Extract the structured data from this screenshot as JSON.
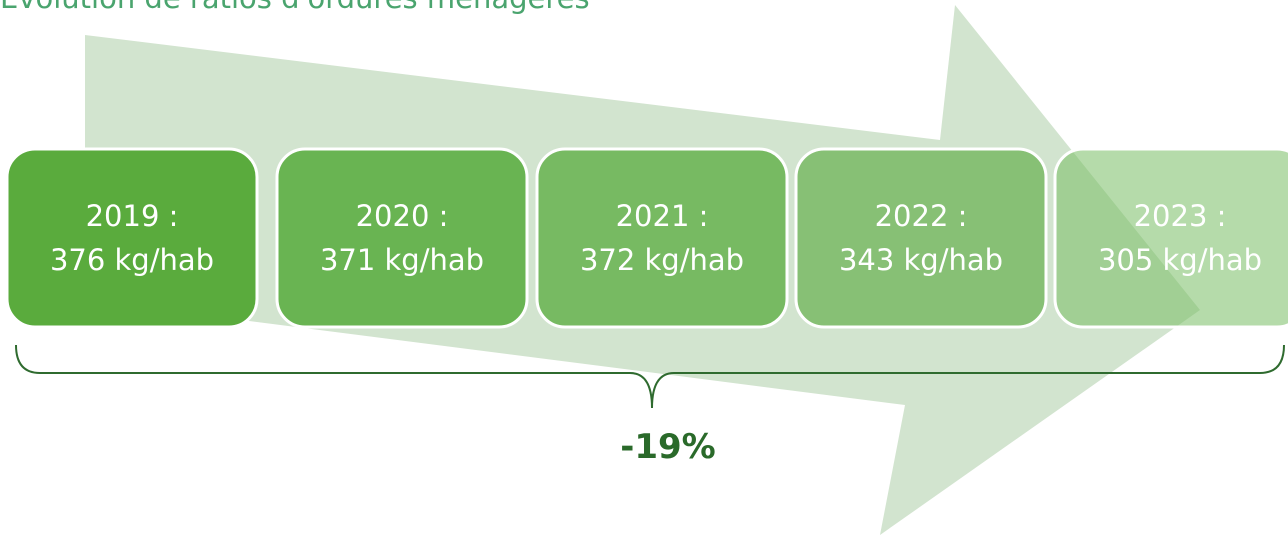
{
  "title": "Évolution de ratios d'ordures ménagères",
  "boxes": [
    {
      "year": "2019 :",
      "value": "376 kg/hab"
    },
    {
      "year": "2020 :",
      "value": "371 kg/hab"
    },
    {
      "year": "2021 :",
      "value": "372 kg/hab"
    },
    {
      "year": "2022 :",
      "value": "343 kg/hab"
    },
    {
      "year": "2023 :",
      "value": "305 kg/hab"
    }
  ],
  "total": "-19%"
}
